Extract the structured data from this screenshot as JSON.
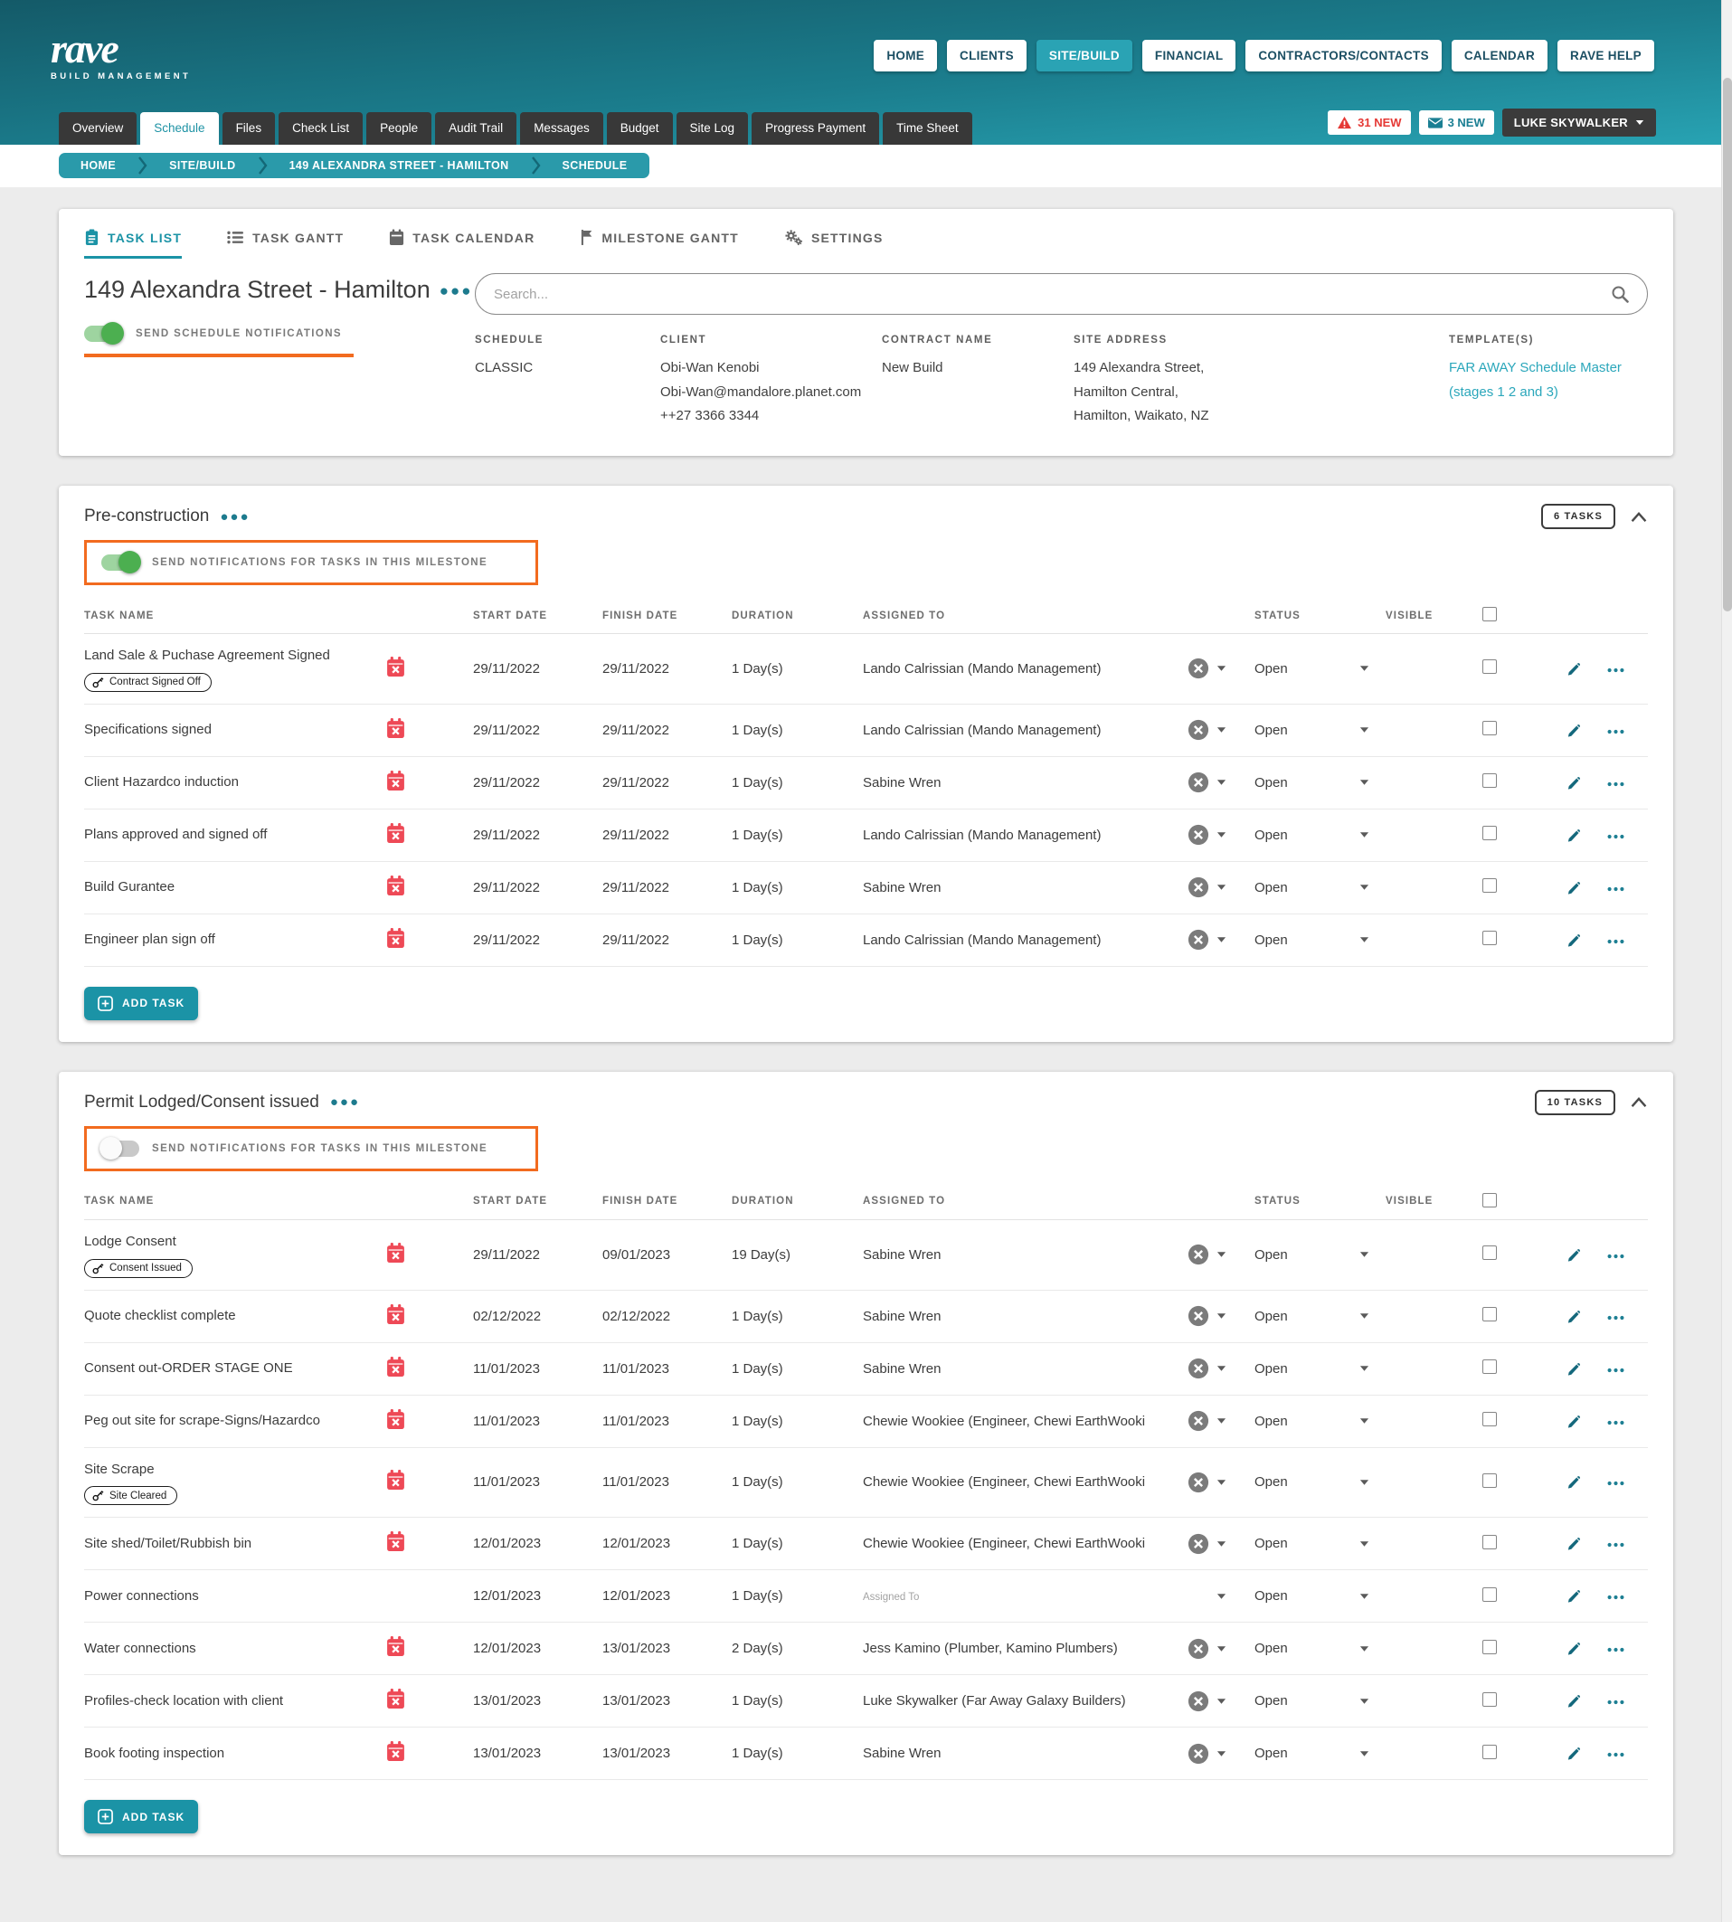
{
  "header": {
    "brand": {
      "name": "rave",
      "tagline": "BUILD MANAGEMENT"
    },
    "nav": [
      {
        "label": "HOME"
      },
      {
        "label": "CLIENTS"
      },
      {
        "label": "SITE/BUILD",
        "active": true
      },
      {
        "label": "FINANCIAL"
      },
      {
        "label": "CONTRACTORS/CONTACTS"
      },
      {
        "label": "CALENDAR"
      },
      {
        "label": "RAVE HELP"
      }
    ],
    "tabs": [
      {
        "label": "Overview"
      },
      {
        "label": "Schedule",
        "active": true
      },
      {
        "label": "Files"
      },
      {
        "label": "Check List"
      },
      {
        "label": "People"
      },
      {
        "label": "Audit Trail"
      },
      {
        "label": "Messages"
      },
      {
        "label": "Budget"
      },
      {
        "label": "Site Log"
      },
      {
        "label": "Progress Payment"
      },
      {
        "label": "Time Sheet"
      }
    ],
    "alerts": [
      {
        "label": "31 NEW",
        "icon": "warning-triangle-icon"
      },
      {
        "label": "3 NEW",
        "icon": "envelope-icon"
      }
    ],
    "user": {
      "label": "LUKE SKYWALKER"
    }
  },
  "breadcrumb": [
    {
      "label": "HOME"
    },
    {
      "label": "SITE/BUILD"
    },
    {
      "label": "149 ALEXANDRA STREET - HAMILTON"
    },
    {
      "label": "SCHEDULE"
    }
  ],
  "view_tabs": [
    {
      "label": "TASK LIST",
      "icon": "clipboard-icon",
      "active": true
    },
    {
      "label": "TASK GANTT",
      "icon": "gantt-list-icon"
    },
    {
      "label": "TASK CALENDAR",
      "icon": "calendar-icon"
    },
    {
      "label": "MILESTONE GANTT",
      "icon": "flag-icon"
    },
    {
      "label": "SETTINGS",
      "icon": "gears-icon"
    }
  ],
  "project": {
    "title": "149 Alexandra Street - Hamilton",
    "send_notifications_label": "SEND SCHEDULE NOTIFICATIONS",
    "notifications_on": true,
    "search_placeholder": "Search...",
    "details": [
      {
        "label": "SCHEDULE",
        "lines": [
          "CLASSIC"
        ]
      },
      {
        "label": "CLIENT",
        "lines": [
          "Obi-Wan Kenobi",
          "Obi-Wan@mandalore.planet.com",
          "++27 3366 3344"
        ]
      },
      {
        "label": "CONTRACT NAME",
        "lines": [
          "New Build"
        ]
      },
      {
        "label": "SITE ADDRESS",
        "lines": [
          "149 Alexandra Street,",
          "Hamilton Central,",
          "Hamilton, Waikato, NZ"
        ]
      },
      {
        "label": "TEMPLATE(S)",
        "lines": [
          "FAR AWAY Schedule Master (stages 1 2 and 3)"
        ],
        "is_link": true
      }
    ]
  },
  "table": {
    "headers": [
      "TASK NAME",
      "START DATE",
      "FINISH DATE",
      "DURATION",
      "ASSIGNED TO",
      "STATUS",
      "VISIBLE"
    ]
  },
  "milestones": [
    {
      "title": "Pre-construction",
      "tasks_badge": "6 TASKS",
      "notifications_label": "SEND NOTIFICATIONS FOR TASKS IN THIS MILESTONE",
      "notifications_on": true,
      "add_task_label": "ADD TASK",
      "tasks": [
        {
          "name": "Land Sale & Puchase Agreement Signed",
          "key_badge": "Contract Signed Off",
          "calendar_alert": true,
          "start": "29/11/2022",
          "finish": "29/11/2022",
          "duration": "1 Day(s)",
          "assigned_to": "Lando Calrissian (Mando Management)",
          "clearable": true,
          "status": "Open"
        },
        {
          "name": "Specifications signed",
          "calendar_alert": true,
          "start": "29/11/2022",
          "finish": "29/11/2022",
          "duration": "1 Day(s)",
          "assigned_to": "Lando Calrissian (Mando Management)",
          "clearable": true,
          "status": "Open"
        },
        {
          "name": "Client Hazardco induction",
          "calendar_alert": true,
          "start": "29/11/2022",
          "finish": "29/11/2022",
          "duration": "1 Day(s)",
          "assigned_to": "Sabine Wren",
          "clearable": true,
          "status": "Open"
        },
        {
          "name": "Plans approved and signed off",
          "calendar_alert": true,
          "start": "29/11/2022",
          "finish": "29/11/2022",
          "duration": "1 Day(s)",
          "assigned_to": "Lando Calrissian (Mando Management)",
          "clearable": true,
          "status": "Open"
        },
        {
          "name": "Build Gurantee",
          "calendar_alert": true,
          "start": "29/11/2022",
          "finish": "29/11/2022",
          "duration": "1 Day(s)",
          "assigned_to": "Sabine Wren",
          "clearable": true,
          "status": "Open"
        },
        {
          "name": "Engineer plan sign off",
          "calendar_alert": true,
          "start": "29/11/2022",
          "finish": "29/11/2022",
          "duration": "1 Day(s)",
          "assigned_to": "Lando Calrissian (Mando Management)",
          "clearable": true,
          "status": "Open"
        }
      ]
    },
    {
      "title": "Permit Lodged/Consent issued",
      "tasks_badge": "10 TASKS",
      "notifications_label": "SEND NOTIFICATIONS FOR TASKS IN THIS MILESTONE",
      "notifications_on": false,
      "add_task_label": "ADD TASK",
      "tasks": [
        {
          "name": "Lodge Consent",
          "key_badge": "Consent Issued",
          "calendar_alert": true,
          "start": "29/11/2022",
          "finish": "09/01/2023",
          "duration": "19 Day(s)",
          "assigned_to": "Sabine Wren",
          "clearable": true,
          "status": "Open"
        },
        {
          "name": "Quote checklist complete",
          "calendar_alert": true,
          "start": "02/12/2022",
          "finish": "02/12/2022",
          "duration": "1 Day(s)",
          "assigned_to": "Sabine Wren",
          "clearable": true,
          "status": "Open"
        },
        {
          "name": "Consent out-ORDER STAGE ONE",
          "calendar_alert": true,
          "start": "11/01/2023",
          "finish": "11/01/2023",
          "duration": "1 Day(s)",
          "assigned_to": "Sabine Wren",
          "clearable": true,
          "status": "Open"
        },
        {
          "name": "Peg out site for scrape-Signs/Hazardco",
          "calendar_alert": true,
          "start": "11/01/2023",
          "finish": "11/01/2023",
          "duration": "1 Day(s)",
          "assigned_to": "Chewie Wookiee (Engineer, Chewi EarthWooki",
          "clearable": true,
          "status": "Open"
        },
        {
          "name": "Site Scrape",
          "key_badge": "Site Cleared",
          "calendar_alert": true,
          "start": "11/01/2023",
          "finish": "11/01/2023",
          "duration": "1 Day(s)",
          "assigned_to": "Chewie Wookiee (Engineer, Chewi EarthWooki",
          "clearable": true,
          "status": "Open"
        },
        {
          "name": "Site shed/Toilet/Rubbish bin",
          "calendar_alert": true,
          "start": "12/01/2023",
          "finish": "12/01/2023",
          "duration": "1 Day(s)",
          "assigned_to": "Chewie Wookiee (Engineer, Chewi EarthWooki",
          "clearable": true,
          "status": "Open"
        },
        {
          "name": "Power connections",
          "calendar_alert": false,
          "start": "12/01/2023",
          "finish": "12/01/2023",
          "duration": "1 Day(s)",
          "assigned_to": "",
          "assigned_placeholder": "Assigned To",
          "clearable": false,
          "status": "Open"
        },
        {
          "name": "Water connections",
          "calendar_alert": true,
          "start": "12/01/2023",
          "finish": "13/01/2023",
          "duration": "2 Day(s)",
          "assigned_to": "Jess Kamino (Plumber, Kamino Plumbers)",
          "clearable": true,
          "status": "Open"
        },
        {
          "name": "Profiles-check location with client",
          "calendar_alert": true,
          "start": "13/01/2023",
          "finish": "13/01/2023",
          "duration": "1 Day(s)",
          "assigned_to": "Luke Skywalker (Far Away Galaxy Builders)",
          "clearable": true,
          "status": "Open"
        },
        {
          "name": "Book footing inspection",
          "calendar_alert": true,
          "start": "13/01/2023",
          "finish": "13/01/2023",
          "duration": "1 Day(s)",
          "assigned_to": "Sabine Wren",
          "clearable": true,
          "status": "Open"
        }
      ]
    }
  ],
  "colors": {
    "header_teal_top": "#145a68",
    "header_teal_bottom": "#28a3b3",
    "accent_teal": "#1b93a6",
    "link_teal": "#2ba7bb",
    "alert_red": "#e53935",
    "calendar_red": "#ee4956",
    "toggle_green": "#4caf50",
    "highlight_orange": "#f26b1f"
  }
}
